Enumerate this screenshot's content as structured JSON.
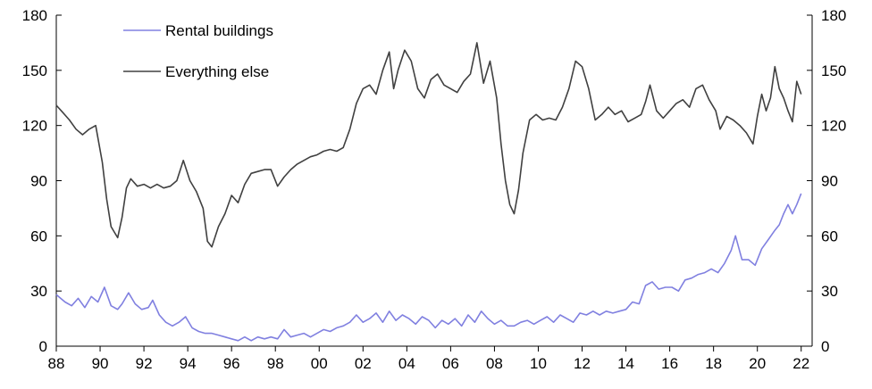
{
  "chart_data": {
    "type": "line",
    "title": "",
    "xlabel": "",
    "ylabel": "",
    "ylim": [
      0,
      180
    ],
    "xlim": [
      1988,
      2022.5
    ],
    "y_ticks": [
      0,
      30,
      60,
      90,
      120,
      150,
      180
    ],
    "x_ticks": [
      {
        "year": 1988,
        "label": "88"
      },
      {
        "year": 1990,
        "label": "90"
      },
      {
        "year": 1992,
        "label": "92"
      },
      {
        "year": 1994,
        "label": "94"
      },
      {
        "year": 1996,
        "label": "96"
      },
      {
        "year": 1998,
        "label": "98"
      },
      {
        "year": 2000,
        "label": "00"
      },
      {
        "year": 2002,
        "label": "02"
      },
      {
        "year": 2004,
        "label": "04"
      },
      {
        "year": 2006,
        "label": "06"
      },
      {
        "year": 2008,
        "label": "08"
      },
      {
        "year": 2010,
        "label": "10"
      },
      {
        "year": 2012,
        "label": "12"
      },
      {
        "year": 2014,
        "label": "14"
      },
      {
        "year": 2016,
        "label": "16"
      },
      {
        "year": 2018,
        "label": "18"
      },
      {
        "year": 2020,
        "label": "20"
      },
      {
        "year": 2022,
        "label": "22"
      }
    ],
    "secondary_y_axis": true,
    "legend_position": "top-left",
    "grid": false,
    "series": [
      {
        "name": "Rental buildings",
        "color": "#8080e0",
        "points": [
          [
            1988.0,
            28
          ],
          [
            1988.4,
            24
          ],
          [
            1988.7,
            22
          ],
          [
            1989.0,
            26
          ],
          [
            1989.3,
            21
          ],
          [
            1989.6,
            27
          ],
          [
            1989.9,
            24
          ],
          [
            1990.2,
            32
          ],
          [
            1990.5,
            22
          ],
          [
            1990.8,
            20
          ],
          [
            1991.0,
            23
          ],
          [
            1991.3,
            29
          ],
          [
            1991.6,
            23
          ],
          [
            1991.9,
            20
          ],
          [
            1992.2,
            21
          ],
          [
            1992.4,
            25
          ],
          [
            1992.7,
            17
          ],
          [
            1993.0,
            13
          ],
          [
            1993.3,
            11
          ],
          [
            1993.6,
            13
          ],
          [
            1993.9,
            16
          ],
          [
            1994.2,
            10
          ],
          [
            1994.5,
            8
          ],
          [
            1994.8,
            7
          ],
          [
            1995.1,
            7
          ],
          [
            1995.4,
            6
          ],
          [
            1995.7,
            5
          ],
          [
            1996.0,
            4
          ],
          [
            1996.3,
            3
          ],
          [
            1996.6,
            5
          ],
          [
            1996.9,
            3
          ],
          [
            1997.2,
            5
          ],
          [
            1997.5,
            4
          ],
          [
            1997.8,
            5
          ],
          [
            1998.1,
            4
          ],
          [
            1998.4,
            9
          ],
          [
            1998.7,
            5
          ],
          [
            1999.0,
            6
          ],
          [
            1999.3,
            7
          ],
          [
            1999.6,
            5
          ],
          [
            1999.9,
            7
          ],
          [
            2000.2,
            9
          ],
          [
            2000.5,
            8
          ],
          [
            2000.8,
            10
          ],
          [
            2001.1,
            11
          ],
          [
            2001.4,
            13
          ],
          [
            2001.7,
            17
          ],
          [
            2002.0,
            13
          ],
          [
            2002.3,
            15
          ],
          [
            2002.6,
            18
          ],
          [
            2002.9,
            13
          ],
          [
            2003.2,
            19
          ],
          [
            2003.5,
            14
          ],
          [
            2003.8,
            17
          ],
          [
            2004.1,
            15
          ],
          [
            2004.4,
            12
          ],
          [
            2004.7,
            16
          ],
          [
            2005.0,
            14
          ],
          [
            2005.3,
            10
          ],
          [
            2005.6,
            14
          ],
          [
            2005.9,
            12
          ],
          [
            2006.2,
            15
          ],
          [
            2006.5,
            11
          ],
          [
            2006.8,
            17
          ],
          [
            2007.1,
            13
          ],
          [
            2007.4,
            19
          ],
          [
            2007.7,
            15
          ],
          [
            2008.0,
            12
          ],
          [
            2008.3,
            14
          ],
          [
            2008.6,
            11
          ],
          [
            2008.9,
            11
          ],
          [
            2009.2,
            13
          ],
          [
            2009.5,
            14
          ],
          [
            2009.8,
            12
          ],
          [
            2010.1,
            14
          ],
          [
            2010.4,
            16
          ],
          [
            2010.7,
            13
          ],
          [
            2011.0,
            17
          ],
          [
            2011.3,
            15
          ],
          [
            2011.6,
            13
          ],
          [
            2011.9,
            18
          ],
          [
            2012.2,
            17
          ],
          [
            2012.5,
            19
          ],
          [
            2012.8,
            17
          ],
          [
            2013.1,
            19
          ],
          [
            2013.4,
            18
          ],
          [
            2013.7,
            19
          ],
          [
            2014.0,
            20
          ],
          [
            2014.3,
            24
          ],
          [
            2014.6,
            23
          ],
          [
            2014.9,
            33
          ],
          [
            2015.2,
            35
          ],
          [
            2015.5,
            31
          ],
          [
            2015.8,
            32
          ],
          [
            2016.1,
            32
          ],
          [
            2016.4,
            30
          ],
          [
            2016.7,
            36
          ],
          [
            2017.0,
            37
          ],
          [
            2017.3,
            39
          ],
          [
            2017.6,
            40
          ],
          [
            2017.9,
            42
          ],
          [
            2018.2,
            40
          ],
          [
            2018.5,
            45
          ],
          [
            2018.8,
            52
          ],
          [
            2019.0,
            60
          ],
          [
            2019.3,
            47
          ],
          [
            2019.6,
            47
          ],
          [
            2019.9,
            44
          ],
          [
            2020.2,
            53
          ],
          [
            2020.5,
            58
          ],
          [
            2020.8,
            63
          ],
          [
            2021.0,
            66
          ],
          [
            2021.2,
            72
          ],
          [
            2021.4,
            77
          ],
          [
            2021.6,
            72
          ],
          [
            2021.8,
            77
          ],
          [
            2022.0,
            83
          ]
        ]
      },
      {
        "name": "Everything else",
        "color": "#404040",
        "points": [
          [
            1988.0,
            131
          ],
          [
            1988.3,
            127
          ],
          [
            1988.6,
            123
          ],
          [
            1988.9,
            118
          ],
          [
            1989.2,
            115
          ],
          [
            1989.5,
            118
          ],
          [
            1989.8,
            120
          ],
          [
            1990.1,
            100
          ],
          [
            1990.3,
            80
          ],
          [
            1990.5,
            65
          ],
          [
            1990.8,
            59
          ],
          [
            1991.0,
            70
          ],
          [
            1991.2,
            86
          ],
          [
            1991.4,
            91
          ],
          [
            1991.7,
            87
          ],
          [
            1992.0,
            88
          ],
          [
            1992.3,
            86
          ],
          [
            1992.6,
            88
          ],
          [
            1992.9,
            86
          ],
          [
            1993.2,
            87
          ],
          [
            1993.5,
            90
          ],
          [
            1993.8,
            101
          ],
          [
            1994.1,
            90
          ],
          [
            1994.4,
            84
          ],
          [
            1994.7,
            75
          ],
          [
            1994.9,
            57
          ],
          [
            1995.1,
            54
          ],
          [
            1995.4,
            65
          ],
          [
            1995.7,
            72
          ],
          [
            1996.0,
            82
          ],
          [
            1996.3,
            78
          ],
          [
            1996.6,
            88
          ],
          [
            1996.9,
            94
          ],
          [
            1997.2,
            95
          ],
          [
            1997.5,
            96
          ],
          [
            1997.8,
            96
          ],
          [
            1998.1,
            87
          ],
          [
            1998.4,
            92
          ],
          [
            1998.7,
            96
          ],
          [
            1999.0,
            99
          ],
          [
            1999.3,
            101
          ],
          [
            1999.6,
            103
          ],
          [
            1999.9,
            104
          ],
          [
            2000.2,
            106
          ],
          [
            2000.5,
            107
          ],
          [
            2000.8,
            106
          ],
          [
            2001.1,
            108
          ],
          [
            2001.4,
            118
          ],
          [
            2001.7,
            132
          ],
          [
            2002.0,
            140
          ],
          [
            2002.3,
            142
          ],
          [
            2002.6,
            137
          ],
          [
            2002.9,
            150
          ],
          [
            2003.2,
            160
          ],
          [
            2003.4,
            140
          ],
          [
            2003.6,
            150
          ],
          [
            2003.9,
            161
          ],
          [
            2004.2,
            155
          ],
          [
            2004.5,
            140
          ],
          [
            2004.8,
            135
          ],
          [
            2005.1,
            145
          ],
          [
            2005.4,
            148
          ],
          [
            2005.7,
            142
          ],
          [
            2006.0,
            140
          ],
          [
            2006.3,
            138
          ],
          [
            2006.6,
            144
          ],
          [
            2006.9,
            148
          ],
          [
            2007.2,
            165
          ],
          [
            2007.5,
            143
          ],
          [
            2007.8,
            155
          ],
          [
            2008.1,
            135
          ],
          [
            2008.3,
            110
          ],
          [
            2008.5,
            90
          ],
          [
            2008.7,
            77
          ],
          [
            2008.9,
            72
          ],
          [
            2009.1,
            85
          ],
          [
            2009.3,
            105
          ],
          [
            2009.6,
            123
          ],
          [
            2009.9,
            126
          ],
          [
            2010.2,
            123
          ],
          [
            2010.5,
            124
          ],
          [
            2010.8,
            123
          ],
          [
            2011.1,
            130
          ],
          [
            2011.4,
            140
          ],
          [
            2011.7,
            155
          ],
          [
            2012.0,
            152
          ],
          [
            2012.3,
            140
          ],
          [
            2012.6,
            123
          ],
          [
            2012.9,
            126
          ],
          [
            2013.2,
            130
          ],
          [
            2013.5,
            126
          ],
          [
            2013.8,
            128
          ],
          [
            2014.1,
            122
          ],
          [
            2014.4,
            124
          ],
          [
            2014.7,
            126
          ],
          [
            2014.9,
            133
          ],
          [
            2015.1,
            142
          ],
          [
            2015.4,
            128
          ],
          [
            2015.7,
            124
          ],
          [
            2016.0,
            128
          ],
          [
            2016.3,
            132
          ],
          [
            2016.6,
            134
          ],
          [
            2016.9,
            130
          ],
          [
            2017.2,
            140
          ],
          [
            2017.5,
            142
          ],
          [
            2017.8,
            134
          ],
          [
            2018.1,
            128
          ],
          [
            2018.3,
            118
          ],
          [
            2018.6,
            125
          ],
          [
            2018.9,
            123
          ],
          [
            2019.2,
            120
          ],
          [
            2019.5,
            116
          ],
          [
            2019.8,
            110
          ],
          [
            2020.0,
            125
          ],
          [
            2020.2,
            137
          ],
          [
            2020.4,
            128
          ],
          [
            2020.6,
            135
          ],
          [
            2020.8,
            152
          ],
          [
            2021.0,
            140
          ],
          [
            2021.2,
            135
          ],
          [
            2021.4,
            128
          ],
          [
            2021.6,
            122
          ],
          [
            2021.8,
            144
          ],
          [
            2022.0,
            137
          ]
        ]
      }
    ]
  }
}
